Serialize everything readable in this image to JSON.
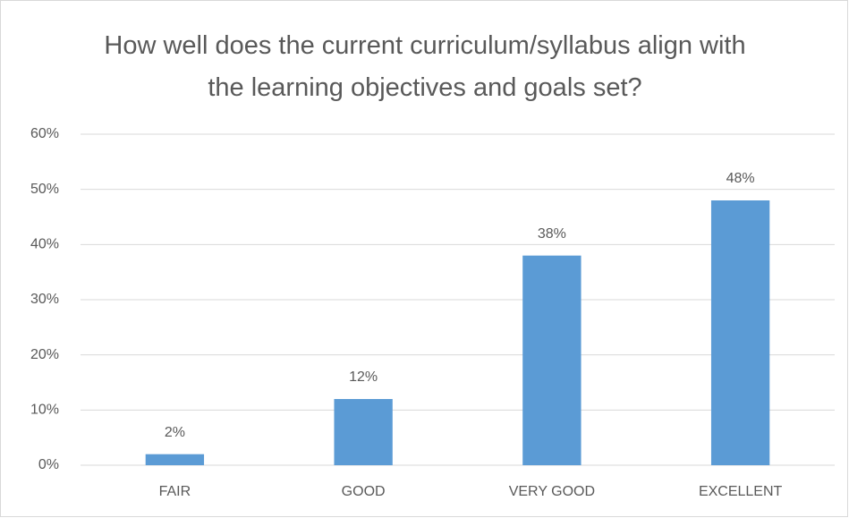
{
  "chart_data": {
    "type": "bar",
    "title": "How well does the current curriculum/syllabus align with the learning objectives and goals set?",
    "categories": [
      "FAIR",
      "GOOD",
      "VERY GOOD",
      "EXCELLENT"
    ],
    "values": [
      2,
      12,
      38,
      48
    ],
    "value_labels": [
      "2%",
      "12%",
      "38%",
      "48%"
    ],
    "color": "#5b9bd5",
    "ylim": [
      0,
      60
    ],
    "yticks": [
      {
        "value": 0,
        "label": "0%"
      },
      {
        "value": 10,
        "label": "10%"
      },
      {
        "value": 20,
        "label": "20%"
      },
      {
        "value": 30,
        "label": "30%"
      },
      {
        "value": 40,
        "label": "40%"
      },
      {
        "value": 50,
        "label": "50%"
      },
      {
        "value": 60,
        "label": "60%"
      }
    ],
    "grid": true
  }
}
